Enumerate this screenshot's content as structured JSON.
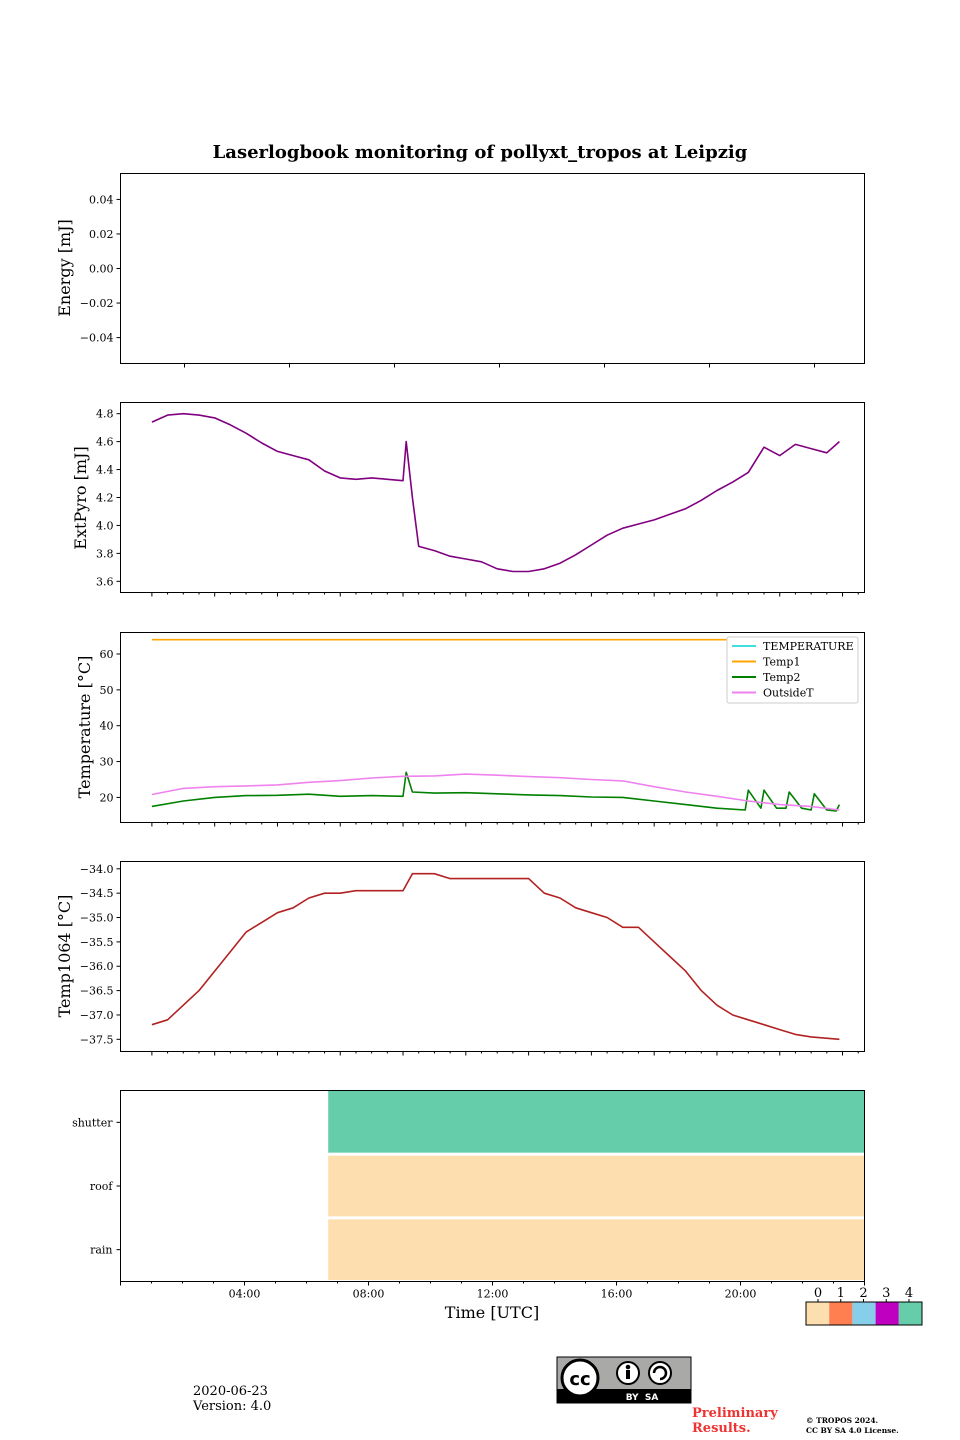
{
  "chart_data": [
    {
      "type": "line",
      "title": "Laserlogbook monitoring of pollyxt_tropos at Leipzig",
      "ylabel": "Energy [mJ]",
      "ylim": [
        -0.055,
        0.055
      ],
      "yticks": [
        0.04,
        0.02,
        0.0,
        -0.02,
        -0.04
      ],
      "ytick_labels": [
        "0.04",
        "0.02",
        "0.00",
        "−0.02",
        "−0.04"
      ],
      "series": []
    },
    {
      "type": "line",
      "ylabel": "ExtPyro [mJ]",
      "ylim": [
        3.52,
        4.88
      ],
      "yticks": [
        4.8,
        4.6,
        4.4,
        4.2,
        4.0,
        3.8,
        3.6
      ],
      "ytick_labels": [
        "4.8",
        "4.6",
        "4.4",
        "4.2",
        "4.0",
        "3.8",
        "3.6"
      ],
      "series": [
        {
          "name": "ExtPyro",
          "color": "#800080",
          "x": [
            1.0,
            1.5,
            2.0,
            2.5,
            3.0,
            3.5,
            4.0,
            4.5,
            5.0,
            5.5,
            6.0,
            6.5,
            7.0,
            7.5,
            8.0,
            8.5,
            9.0,
            9.1,
            9.3,
            9.5,
            10.0,
            10.5,
            11.0,
            11.5,
            12.0,
            12.5,
            13.0,
            13.5,
            14.0,
            14.5,
            15.0,
            15.5,
            16.0,
            16.5,
            17.0,
            17.5,
            18.0,
            18.5,
            19.0,
            19.5,
            20.0,
            20.5,
            21.0,
            21.5,
            22.0,
            22.5,
            22.9
          ],
          "values": [
            4.74,
            4.79,
            4.8,
            4.79,
            4.77,
            4.72,
            4.66,
            4.59,
            4.53,
            4.5,
            4.47,
            4.39,
            4.34,
            4.33,
            4.34,
            4.33,
            4.32,
            4.6,
            4.2,
            3.85,
            3.82,
            3.78,
            3.76,
            3.74,
            3.69,
            3.67,
            3.67,
            3.69,
            3.73,
            3.79,
            3.86,
            3.93,
            3.98,
            4.01,
            4.04,
            4.08,
            4.12,
            4.18,
            4.25,
            4.31,
            4.38,
            4.56,
            4.5,
            4.58,
            4.55,
            4.52,
            4.6
          ]
        }
      ]
    },
    {
      "type": "line",
      "ylabel": "Temperature [°C]",
      "ylim": [
        13,
        66
      ],
      "yticks": [
        60,
        50,
        40,
        30,
        20
      ],
      "ytick_labels": [
        "60",
        "50",
        "40",
        "30",
        "20"
      ],
      "legend": "top-right",
      "series": [
        {
          "name": "TEMPERATURE",
          "color": "#40e0e0",
          "x": [],
          "values": []
        },
        {
          "name": "Temp1",
          "color": "#ffa500",
          "x": [
            1.0,
            19.5
          ],
          "values": [
            64,
            64
          ]
        },
        {
          "name": "Temp2",
          "color": "#008000",
          "x": [
            1.0,
            2.0,
            3.0,
            4.0,
            5.0,
            6.0,
            7.0,
            8.0,
            9.0,
            9.1,
            9.3,
            10.0,
            11.0,
            12.0,
            13.0,
            14.0,
            15.0,
            16.0,
            17.0,
            18.0,
            19.0,
            19.9,
            20.0,
            20.4,
            20.5,
            20.9,
            21.2,
            21.3,
            21.7,
            22.0,
            22.1,
            22.5,
            22.8,
            22.9
          ],
          "values": [
            17.5,
            19.0,
            20.0,
            20.5,
            20.6,
            20.9,
            20.3,
            20.5,
            20.3,
            27.0,
            21.5,
            21.2,
            21.3,
            21.0,
            20.7,
            20.5,
            20.1,
            20.0,
            19.0,
            18.0,
            17.0,
            16.5,
            22.0,
            17.0,
            22.0,
            17.0,
            17.0,
            21.5,
            17.0,
            16.5,
            21.0,
            16.5,
            16.2,
            18.0
          ]
        },
        {
          "name": "OutsideT",
          "color": "#ee82ee",
          "x": [
            1.0,
            2.0,
            3.0,
            4.0,
            5.0,
            6.0,
            7.0,
            8.0,
            9.0,
            10.0,
            11.0,
            12.0,
            13.0,
            14.0,
            15.0,
            16.0,
            17.0,
            18.0,
            19.0,
            20.0,
            21.0,
            22.0,
            22.9
          ],
          "values": [
            20.8,
            22.5,
            23.0,
            23.2,
            23.5,
            24.2,
            24.7,
            25.4,
            25.9,
            26.0,
            26.5,
            26.2,
            25.8,
            25.5,
            25.0,
            24.6,
            23.0,
            21.5,
            20.3,
            19.0,
            18.0,
            17.5,
            16.5
          ]
        }
      ]
    },
    {
      "type": "line",
      "ylabel": "Temp1064 [°C]",
      "ylim": [
        -37.75,
        -33.85
      ],
      "yticks": [
        -34.0,
        -34.5,
        -35.0,
        -35.5,
        -36.0,
        -36.5,
        -37.0,
        -37.5
      ],
      "ytick_labels": [
        "−34.0",
        "−34.5",
        "−35.0",
        "−35.5",
        "−36.0",
        "−36.5",
        "−37.0",
        "−37.5"
      ],
      "series": [
        {
          "name": "Temp1064",
          "color": "#b22222",
          "x": [
            1.0,
            1.5,
            2.0,
            2.5,
            3.0,
            3.5,
            4.0,
            4.5,
            5.0,
            5.5,
            6.0,
            6.5,
            7.0,
            7.5,
            8.0,
            8.5,
            9.0,
            9.3,
            10.0,
            10.5,
            11.0,
            12.0,
            13.0,
            13.5,
            14.0,
            14.5,
            15.0,
            15.5,
            16.0,
            16.5,
            17.0,
            17.5,
            18.0,
            18.5,
            19.0,
            19.5,
            20.0,
            20.5,
            21.0,
            21.5,
            22.0,
            22.9
          ],
          "values": [
            -37.2,
            -37.1,
            -36.8,
            -36.5,
            -36.1,
            -35.7,
            -35.3,
            -35.1,
            -34.9,
            -34.8,
            -34.6,
            -34.5,
            -34.5,
            -34.45,
            -34.45,
            -34.45,
            -34.45,
            -34.1,
            -34.1,
            -34.2,
            -34.2,
            -34.2,
            -34.2,
            -34.5,
            -34.6,
            -34.8,
            -34.9,
            -35.0,
            -35.2,
            -35.2,
            -35.5,
            -35.8,
            -36.1,
            -36.5,
            -36.8,
            -37.0,
            -37.1,
            -37.2,
            -37.3,
            -37.4,
            -37.45,
            -37.5
          ]
        }
      ]
    },
    {
      "type": "heatmap",
      "xlabel": "Time [UTC]",
      "xlim": [
        0,
        24
      ],
      "xticks": [
        4,
        8,
        12,
        16,
        20
      ],
      "xtick_labels": [
        "04:00",
        "08:00",
        "12:00",
        "16:00",
        "20:00"
      ],
      "rows": [
        "shutter",
        "roof",
        "rain"
      ],
      "segments": [
        {
          "row": "shutter",
          "start": 6.7,
          "end": 24,
          "value": 4
        },
        {
          "row": "roof",
          "start": 6.7,
          "end": 24,
          "value": 0
        },
        {
          "row": "rain",
          "start": 6.7,
          "end": 24,
          "value": 0
        }
      ],
      "colorbar": {
        "labels": [
          "0",
          "1",
          "2",
          "3",
          "4"
        ],
        "colors": [
          "#fddeaf",
          "#ff7f50",
          "#87ceeb",
          "#c000c0",
          "#66cdaa"
        ]
      }
    }
  ],
  "footer": {
    "date": "2020-06-23",
    "version": "Version: 4.0",
    "cc_badge_text": "BY  SA",
    "preliminary": "Preliminary",
    "results": "Results.",
    "copyright": "© TROPOS 2024.",
    "license": "CC BY SA 4.0 License."
  }
}
